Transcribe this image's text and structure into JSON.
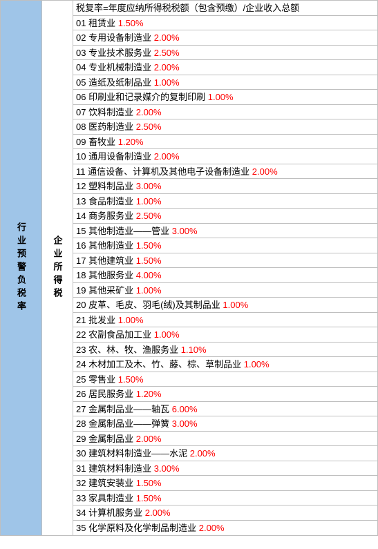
{
  "colors": {
    "left_bg": "#9fc5e8",
    "right_bg": "#ffffff",
    "border": "#bfbfbf",
    "text": "#000000",
    "rate": "#ff0000"
  },
  "left_label": "行业预警负税率",
  "mid_label": "企业所得税",
  "header": "税复率=年度应纳所得税税额（包含预缴）/企业收入总额",
  "rows": [
    {
      "num": "01",
      "name": "租赁业",
      "rate": "1.50%"
    },
    {
      "num": "02",
      "name": "专用设备制造业",
      "rate": "2.00%"
    },
    {
      "num": "03",
      "name": "专业技术服务业",
      "rate": "2.50%"
    },
    {
      "num": "04",
      "name": "专业机械制造业",
      "rate": "2.00%"
    },
    {
      "num": "05",
      "name": "造纸及纸制品业",
      "rate": "1.00%"
    },
    {
      "num": "06",
      "name": "印刷业和记录媒介的复制印刷",
      "rate": "1.00%"
    },
    {
      "num": "07",
      "name": "饮料制造业",
      "rate": "2.00%"
    },
    {
      "num": "08",
      "name": "医药制造业",
      "rate": "2.50%"
    },
    {
      "num": "09",
      "name": "畜牧业",
      "rate": "1.20%"
    },
    {
      "num": "10",
      "name": "通用设备制造业",
      "rate": "2.00%"
    },
    {
      "num": "11",
      "name": "通信设备、计算机及其他电子设备制造业",
      "rate": "2.00%"
    },
    {
      "num": "12",
      "name": "塑料制品业",
      "rate": "3.00%"
    },
    {
      "num": "13",
      "name": "食品制造业",
      "rate": "1.00%"
    },
    {
      "num": "14",
      "name": "商务服务业",
      "rate": "2.50%"
    },
    {
      "num": "15",
      "name": "其他制造业——管业",
      "rate": "3.00%"
    },
    {
      "num": "16",
      "name": "其他制造业",
      "rate": "1.50%"
    },
    {
      "num": "17",
      "name": "其他建筑业",
      "rate": "1.50%"
    },
    {
      "num": "18",
      "name": "其他服务业",
      "rate": "4.00%"
    },
    {
      "num": "19",
      "name": "其他采矿业",
      "rate": "1.00%"
    },
    {
      "num": "20",
      "name": "皮革、毛皮、羽毛(绒)及其制品业",
      "rate": "1.00%"
    },
    {
      "num": "21",
      "name": "批发业",
      "rate": "1.00%"
    },
    {
      "num": "22",
      "name": "农副食品加工业",
      "rate": "1.00%"
    },
    {
      "num": "23",
      "name": "农、林、牧、渔服务业",
      "rate": "1.10%"
    },
    {
      "num": "24",
      "name": "木材加工及木、竹、藤、棕、草制品业",
      "rate": "1.00%"
    },
    {
      "num": "25",
      "name": "零售业",
      "rate": "1.50%"
    },
    {
      "num": "26",
      "name": "居民服务业",
      "rate": "1.20%"
    },
    {
      "num": "27",
      "name": "金属制品业——轴瓦",
      "rate": "6.00%"
    },
    {
      "num": "28",
      "name": "金属制品业——弹簧",
      "rate": "3.00%"
    },
    {
      "num": "29",
      "name": "金属制品业",
      "rate": "2.00%"
    },
    {
      "num": "30",
      "name": "建筑材料制造业——水泥",
      "rate": "2.00%"
    },
    {
      "num": "31",
      "name": "建筑材料制造业",
      "rate": "3.00%"
    },
    {
      "num": "32",
      "name": "建筑安装业",
      "rate": "1.50%"
    },
    {
      "num": "33",
      "name": "家具制造业",
      "rate": "1.50%"
    },
    {
      "num": "34",
      "name": "计算机服务业",
      "rate": "2.00%"
    },
    {
      "num": "35",
      "name": "化学原料及化学制品制造业",
      "rate": "2.00%"
    }
  ]
}
